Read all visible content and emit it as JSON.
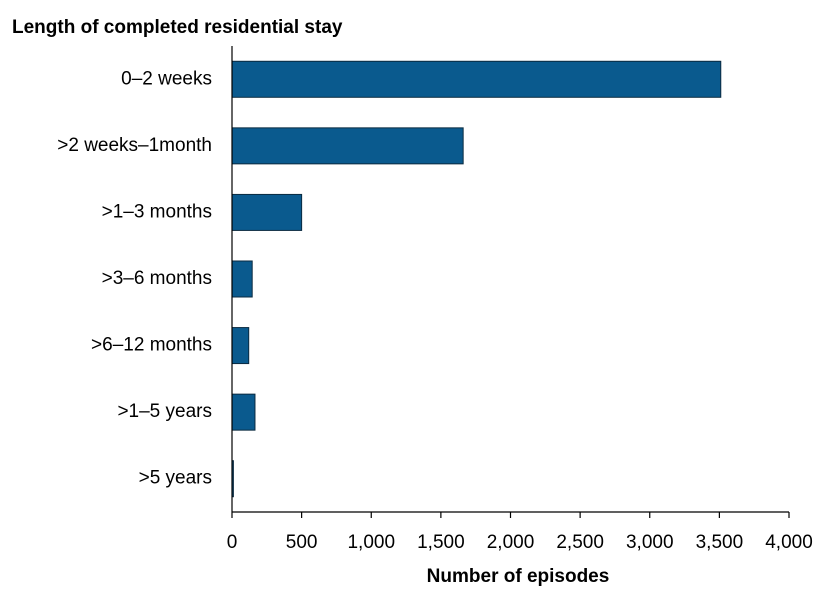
{
  "chart_data": {
    "type": "hbar",
    "title": "Length of completed residential stay",
    "xlabel": "Number of episodes",
    "categories": [
      "0–2 weeks",
      ">2 weeks–1month",
      ">1–3 months",
      ">3–6 months",
      ">6–12 months",
      ">1–5 years",
      ">5 years"
    ],
    "values": [
      3510,
      1660,
      500,
      145,
      120,
      165,
      10
    ],
    "color": "#0a5a8e",
    "xlim": [
      0,
      4000
    ],
    "xticks": [
      0,
      500,
      {
        "value": 1000,
        "label": "1,000"
      },
      {
        "value": 1500,
        "label": "1,500"
      },
      {
        "value": 2000,
        "label": "2,000"
      },
      {
        "value": 2500,
        "label": "2,500"
      },
      {
        "value": 3000,
        "label": "3,000"
      },
      {
        "value": 3500,
        "label": "3,500"
      },
      {
        "value": 4000,
        "label": "4,000"
      }
    ]
  }
}
